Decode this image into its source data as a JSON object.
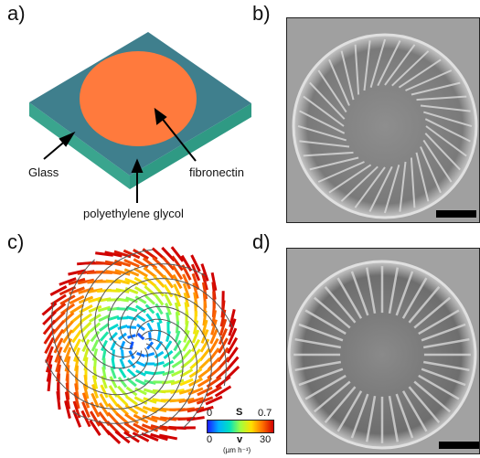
{
  "panels": {
    "a": {
      "label": "a)",
      "annotations": {
        "glass": "Glass",
        "fibronectin": "fibronectin",
        "peg": "polyethylene glycol"
      }
    },
    "b": {
      "label": "b)"
    },
    "c": {
      "label": "c)",
      "colorbar": {
        "s_min": "0",
        "s_label": "S",
        "s_max": "0.7",
        "v_min": "0",
        "v_label": "v",
        "v_max": "30",
        "v_unit": "(µm h⁻¹)"
      }
    },
    "d": {
      "label": "d)"
    }
  },
  "colors": {
    "substrate_top": "#3f7f8d",
    "substrate_side": "#3aa58e",
    "fibronectin_disc": "#ff7a3d"
  }
}
